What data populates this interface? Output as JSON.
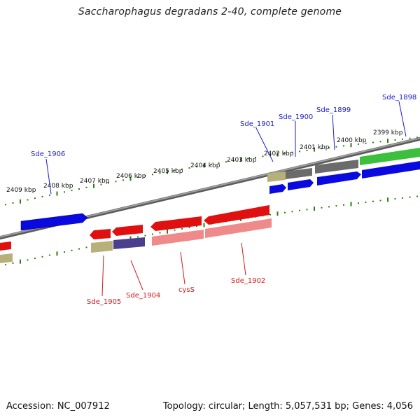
{
  "title": "Saccharophagus degradans 2-40, complete genome",
  "footer": {
    "accession": "Accession: NC_007912",
    "summary": "Topology: circular; Length: 5,057,531 bp; Genes: 4,056"
  },
  "kbp_labels": [
    "2409 kbp",
    "2408 kbp",
    "2407 kbp",
    "2406 kbp",
    "2405 kbp",
    "2404 kbp",
    "2403 kbp",
    "2402 kbp",
    "2401 kbp",
    "2400 kbp",
    "2399 kbp"
  ],
  "gene_labels_forward": [
    "Sde_1906",
    "Sde_1901",
    "Sde_1900",
    "Sde_1899",
    "Sde_1898"
  ],
  "gene_labels_reverse": [
    "Sde_1905",
    "Sde_1904",
    "cysS",
    "Sde_1902"
  ],
  "colors": {
    "backbone": "#808080",
    "tick": "#2e7d10",
    "forward_gene": "#0a0ae0",
    "reverse_gene": "#e01010",
    "reverse_gene_light": "#f08a8a",
    "olive": "#b8b07a",
    "grey": "#6b6b6b",
    "green": "#3cbf3c",
    "navy": "#4a3f8f"
  }
}
